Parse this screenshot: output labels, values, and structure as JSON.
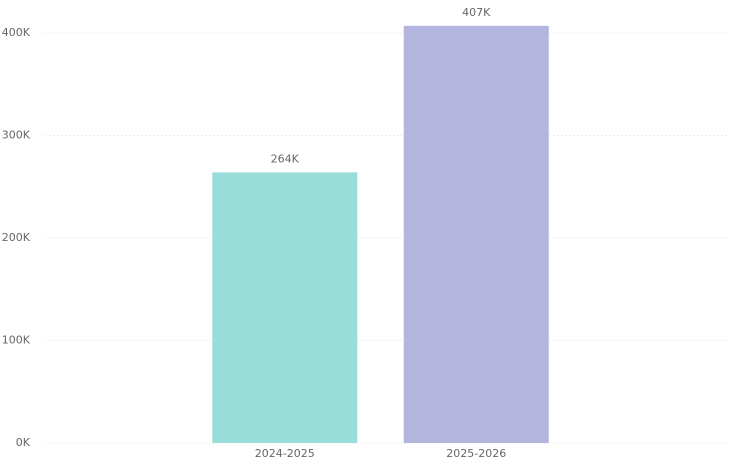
{
  "chart_data": {
    "type": "bar",
    "categories": [
      "2024-2025",
      "2025-2026"
    ],
    "values": [
      264000,
      407000
    ],
    "value_labels": [
      "264K",
      "407K"
    ],
    "colors": [
      "#99dcd9",
      "#b3b5df"
    ],
    "ylim": [
      0,
      420000
    ],
    "yticks": [
      {
        "value": 0,
        "label": "0K"
      },
      {
        "value": 100000,
        "label": "100K"
      },
      {
        "value": 200000,
        "label": "200K"
      },
      {
        "value": 300000,
        "label": "300K"
      },
      {
        "value": 400000,
        "label": "400K"
      }
    ],
    "grid": true
  }
}
